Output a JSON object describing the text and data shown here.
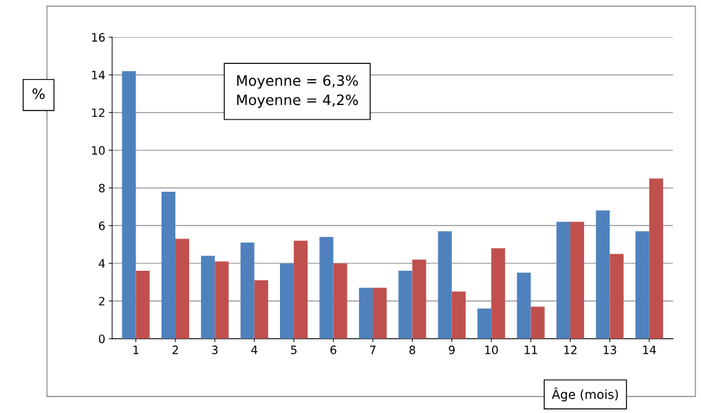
{
  "chart_data": {
    "type": "bar",
    "xlabel": "Âge (mois)",
    "ylabel": "%",
    "categories": [
      "1",
      "2",
      "3",
      "4",
      "5",
      "6",
      "7",
      "8",
      "9",
      "10",
      "11",
      "12",
      "13",
      "14"
    ],
    "series": [
      {
        "color": "#4f81bd",
        "values": [
          14.2,
          7.8,
          4.4,
          5.1,
          4.0,
          5.4,
          2.7,
          3.6,
          5.7,
          1.6,
          3.5,
          6.2,
          6.8,
          5.7
        ]
      },
      {
        "color": "#c0504d",
        "values": [
          3.6,
          5.3,
          4.1,
          3.1,
          5.2,
          4.0,
          2.7,
          4.2,
          2.5,
          4.8,
          1.7,
          6.2,
          4.5,
          8.5
        ]
      }
    ],
    "ylim": [
      0,
      16
    ],
    "yticks": [
      0,
      2,
      4,
      6,
      8,
      10,
      12,
      14,
      16
    ],
    "grid": "y",
    "legend": false,
    "annotations": [
      "Moyenne = 6,3%\nMoyenne = 4,2%"
    ]
  }
}
